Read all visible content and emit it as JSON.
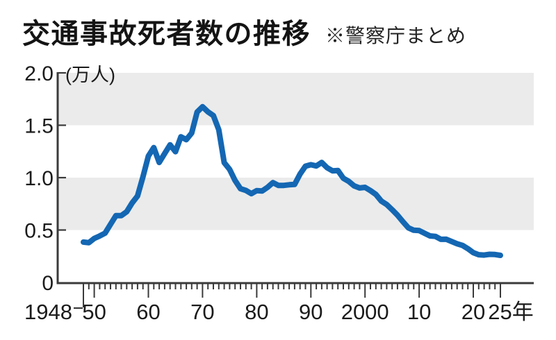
{
  "header": {
    "title": "交通事故死者数の推移",
    "note": "※警察庁まとめ"
  },
  "chart_data": {
    "type": "line",
    "title": "交通事故死者数の推移",
    "source_note": "※警察庁まとめ",
    "series_name": "交通事故死者数",
    "unit_label": "（万人）",
    "unit_label_display": "(万人)",
    "xlabel": "年",
    "ylabel": "万人",
    "xlim": [
      1948,
      2025
    ],
    "ylim": [
      0,
      2.0
    ],
    "grid": false,
    "legend_position": "none",
    "line_color": "#1467b3",
    "band_color": "#ebebeb",
    "axis_color": "#3a3a3a",
    "shaded_bands": [
      [
        0.5,
        1.0
      ],
      [
        1.5,
        2.0
      ]
    ],
    "y_ticks": [
      {
        "value": 2.0,
        "label": "2.0"
      },
      {
        "value": 1.5,
        "label": "1.5"
      },
      {
        "value": 1.0,
        "label": "1.0"
      },
      {
        "value": 0.5,
        "label": "0.5"
      },
      {
        "value": 0,
        "label": "0"
      }
    ],
    "x_ticks": [
      {
        "year": 1948,
        "label": "1948"
      },
      {
        "year": 1950,
        "label": "50"
      },
      {
        "year": 1960,
        "label": "60"
      },
      {
        "year": 1970,
        "label": "70"
      },
      {
        "year": 1980,
        "label": "80"
      },
      {
        "year": 1990,
        "label": "90"
      },
      {
        "year": 2000,
        "label": "2000"
      },
      {
        "year": 2010,
        "label": "10"
      },
      {
        "year": 2020,
        "label": "20"
      },
      {
        "year": 2025,
        "label": "25年"
      }
    ],
    "x": [
      1948,
      1949,
      1950,
      1951,
      1952,
      1953,
      1954,
      1955,
      1956,
      1957,
      1958,
      1959,
      1960,
      1961,
      1962,
      1963,
      1964,
      1965,
      1966,
      1967,
      1968,
      1969,
      1970,
      1971,
      1972,
      1973,
      1974,
      1975,
      1976,
      1977,
      1978,
      1979,
      1980,
      1981,
      1982,
      1983,
      1984,
      1985,
      1986,
      1987,
      1988,
      1989,
      1990,
      1991,
      1992,
      1993,
      1994,
      1995,
      1996,
      1997,
      1998,
      1999,
      2000,
      2001,
      2002,
      2003,
      2004,
      2005,
      2006,
      2007,
      2008,
      2009,
      2010,
      2011,
      2012,
      2013,
      2014,
      2015,
      2016,
      2017,
      2018,
      2019,
      2020,
      2021,
      2022,
      2023,
      2024,
      2025
    ],
    "values": [
      0.385,
      0.379,
      0.42,
      0.443,
      0.47,
      0.554,
      0.637,
      0.638,
      0.675,
      0.758,
      0.825,
      1.008,
      1.206,
      1.287,
      1.145,
      1.23,
      1.313,
      1.248,
      1.39,
      1.362,
      1.426,
      1.626,
      1.677,
      1.628,
      1.592,
      1.457,
      1.143,
      1.079,
      0.973,
      0.895,
      0.878,
      0.847,
      0.876,
      0.872,
      0.907,
      0.952,
      0.926,
      0.926,
      0.932,
      0.935,
      1.034,
      1.109,
      1.123,
      1.111,
      1.145,
      1.095,
      1.065,
      1.068,
      0.994,
      0.964,
      0.921,
      0.901,
      0.907,
      0.876,
      0.84,
      0.777,
      0.744,
      0.694,
      0.642,
      0.58,
      0.521,
      0.498,
      0.495,
      0.469,
      0.444,
      0.439,
      0.411,
      0.412,
      0.39,
      0.369,
      0.353,
      0.322,
      0.284,
      0.264,
      0.261,
      0.268,
      0.266,
      0.258
    ]
  }
}
